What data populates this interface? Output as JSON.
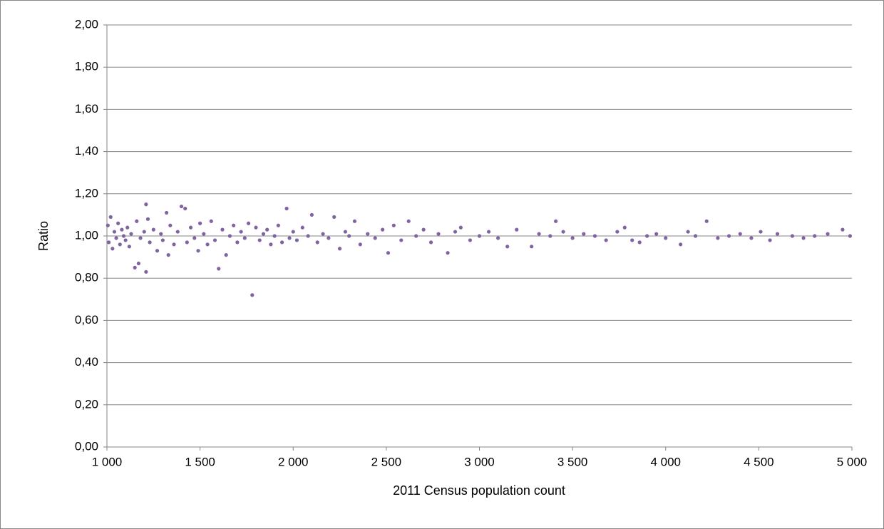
{
  "chart_data": {
    "type": "scatter",
    "x_label": "2011 Census population count",
    "y_label": "Ratio",
    "color": "#8064a2",
    "grid": true,
    "xlim": [
      1000,
      5000
    ],
    "ylim": [
      0,
      2
    ],
    "xticks": [
      {
        "value": 1000,
        "label": "1 000"
      },
      {
        "value": 1500,
        "label": "1 500"
      },
      {
        "value": 2000,
        "label": "2 000"
      },
      {
        "value": 2500,
        "label": "2 500"
      },
      {
        "value": 3000,
        "label": "3 000"
      },
      {
        "value": 3500,
        "label": "3 500"
      },
      {
        "value": 4000,
        "label": "4 000"
      },
      {
        "value": 4500,
        "label": "4 500"
      },
      {
        "value": 5000,
        "label": "5 000"
      }
    ],
    "yticks": [
      {
        "value": 0,
        "label": "0,00"
      },
      {
        "value": 0.2,
        "label": "0,20"
      },
      {
        "value": 0.4,
        "label": "0,40"
      },
      {
        "value": 0.6,
        "label": "0,60"
      },
      {
        "value": 0.8,
        "label": "0,80"
      },
      {
        "value": 1,
        "label": "1,00"
      },
      {
        "value": 1.2,
        "label": "1,20"
      },
      {
        "value": 1.4,
        "label": "1,40"
      },
      {
        "value": 1.6,
        "label": "1,60"
      },
      {
        "value": 1.8,
        "label": "1,80"
      },
      {
        "value": 2,
        "label": "2,00"
      }
    ],
    "x": [
      1005,
      1010,
      1020,
      1030,
      1040,
      1050,
      1060,
      1070,
      1080,
      1090,
      1100,
      1110,
      1120,
      1130,
      1150,
      1160,
      1170,
      1180,
      1200,
      1210,
      1210,
      1220,
      1230,
      1250,
      1270,
      1290,
      1300,
      1320,
      1330,
      1340,
      1360,
      1380,
      1400,
      1420,
      1430,
      1450,
      1470,
      1490,
      1500,
      1520,
      1540,
      1560,
      1580,
      1600,
      1620,
      1640,
      1660,
      1680,
      1700,
      1720,
      1740,
      1760,
      1780,
      1800,
      1820,
      1840,
      1860,
      1880,
      1900,
      1920,
      1940,
      1965,
      1980,
      2000,
      2020,
      2050,
      2080,
      2100,
      2130,
      2160,
      2190,
      2220,
      2250,
      2280,
      2300,
      2330,
      2360,
      2400,
      2440,
      2480,
      2510,
      2540,
      2580,
      2620,
      2660,
      2700,
      2740,
      2780,
      2830,
      2870,
      2900,
      2950,
      3000,
      3050,
      3100,
      3150,
      3200,
      3280,
      3320,
      3380,
      3410,
      3450,
      3500,
      3560,
      3620,
      3680,
      3740,
      3780,
      3820,
      3860,
      3900,
      3950,
      4000,
      4080,
      4120,
      4160,
      4220,
      4280,
      4340,
      4400,
      4460,
      4510,
      4560,
      4600,
      4680,
      4740,
      4800,
      4870,
      4950,
      4990
    ],
    "values": [
      1.05,
      0.97,
      1.09,
      0.94,
      1.02,
      0.99,
      1.06,
      0.96,
      1.03,
      1.0,
      0.98,
      1.04,
      0.95,
      1.01,
      0.85,
      1.07,
      0.87,
      0.99,
      1.02,
      1.15,
      0.83,
      1.08,
      0.97,
      1.03,
      0.93,
      1.01,
      0.98,
      1.11,
      0.91,
      1.05,
      0.96,
      1.02,
      1.14,
      1.13,
      0.97,
      1.04,
      0.99,
      0.93,
      1.06,
      1.01,
      0.96,
      1.07,
      0.98,
      0.845,
      1.03,
      0.91,
      1.0,
      1.05,
      0.97,
      1.02,
      0.99,
      1.06,
      0.72,
      1.04,
      0.98,
      1.01,
      1.03,
      0.96,
      1.0,
      1.05,
      0.97,
      1.13,
      0.99,
      1.02,
      0.98,
      1.04,
      1.0,
      1.1,
      0.97,
      1.01,
      0.99,
      1.09,
      0.94,
      1.02,
      1.0,
      1.07,
      0.96,
      1.01,
      0.99,
      1.03,
      0.92,
      1.05,
      0.98,
      1.07,
      1.0,
      1.03,
      0.97,
      1.01,
      0.92,
      1.02,
      1.04,
      0.98,
      1.0,
      1.02,
      0.99,
      0.95,
      1.03,
      0.95,
      1.01,
      1.0,
      1.07,
      1.02,
      0.99,
      1.01,
      1.0,
      0.98,
      1.02,
      1.04,
      0.98,
      0.97,
      1.0,
      1.01,
      0.99,
      0.96,
      1.02,
      1.0,
      1.07,
      0.99,
      1.0,
      1.01,
      0.99,
      1.02,
      0.98,
      1.01,
      1.0,
      0.99,
      1.0,
      1.01,
      1.03,
      1.0
    ]
  }
}
